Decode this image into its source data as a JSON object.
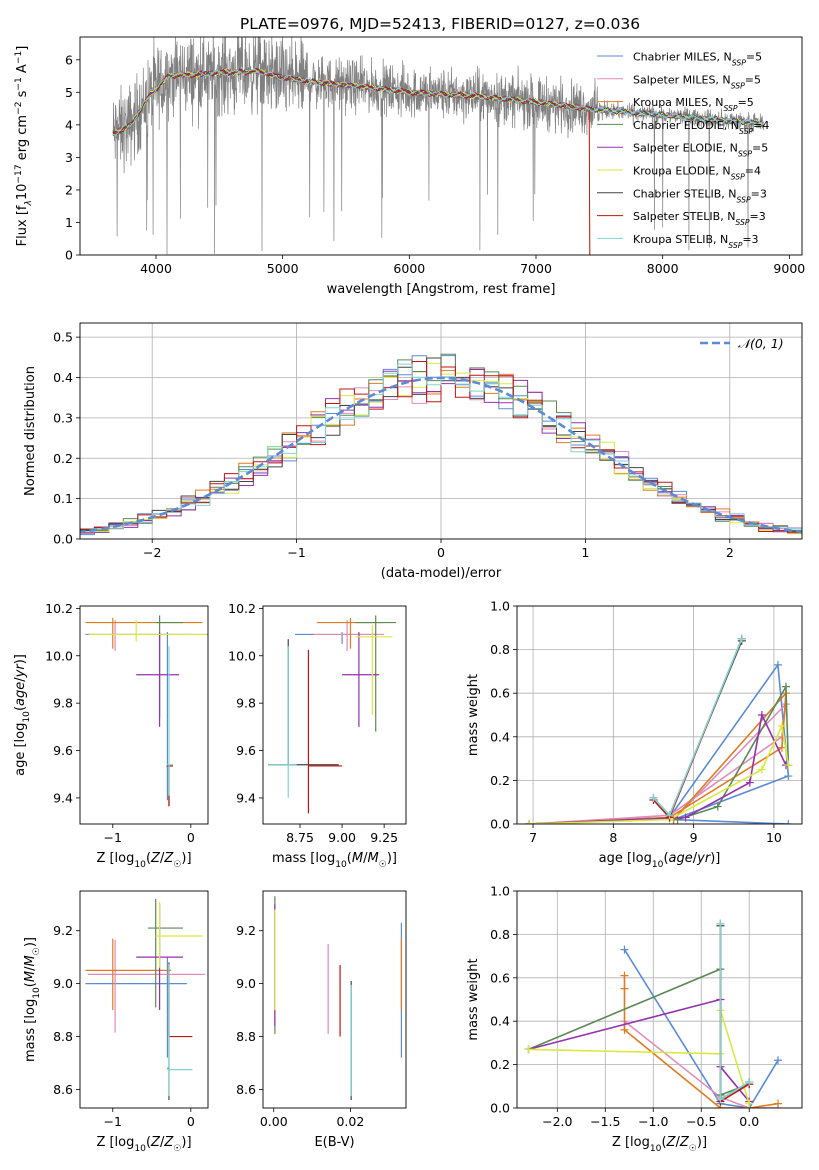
{
  "colors": {
    "chabrier_miles": "#5b8bd6",
    "salpeter_miles": "#e08cba",
    "kroupa_miles": "#e07b20",
    "chabrier_elodie": "#5a8a52",
    "salpeter_elodie": "#9530b0",
    "kroupa_elodie": "#d8ea40",
    "chabrier_stelib": "#444444",
    "salpeter_stelib": "#c01515",
    "kroupa_stelib": "#7fd5d5",
    "data": "#808080",
    "normal": "#5b8bd6",
    "grid": "#b0b0b0"
  },
  "chart_data": [
    {
      "id": "spectrum",
      "type": "line",
      "title": "PLATE=0976, MJD=52413, FIBERID=0127, z=0.036",
      "xlabel": "wavelength [Angstrom, rest frame]",
      "ylabel_parts": [
        "Flux [f",
        "λ",
        "10",
        "−17",
        " erg cm",
        "−2",
        " s",
        "−1",
        " A",
        "−1",
        "]"
      ],
      "xlim": [
        3400,
        9100
      ],
      "ylim": [
        0,
        6.7
      ],
      "xticks": [
        4000,
        5000,
        6000,
        7000,
        8000,
        9000
      ],
      "yticks": [
        0,
        1,
        2,
        3,
        4,
        5,
        6
      ],
      "grid": false,
      "legend_position": "top-right",
      "legend": [
        {
          "label": "Chabrier MILES, N",
          "sub": "SSP",
          "tail": "=5",
          "color": "chabrier_miles"
        },
        {
          "label": "Salpeter MILES, N",
          "sub": "SSP",
          "tail": "=5",
          "color": "salpeter_miles"
        },
        {
          "label": "Kroupa MILES, N",
          "sub": "SSP",
          "tail": "=5",
          "color": "kroupa_miles"
        },
        {
          "label": "Chabrier ELODIE, N",
          "sub": "SSP",
          "tail": "=4",
          "color": "chabrier_elodie"
        },
        {
          "label": "Salpeter ELODIE, N",
          "sub": "SSP",
          "tail": "=5",
          "color": "salpeter_elodie"
        },
        {
          "label": "Kroupa ELODIE, N",
          "sub": "SSP",
          "tail": "=4",
          "color": "kroupa_elodie"
        },
        {
          "label": "Chabrier STELIB, N",
          "sub": "SSP",
          "tail": "=3",
          "color": "chabrier_stelib"
        },
        {
          "label": "Salpeter STELIB, N",
          "sub": "SSP",
          "tail": "=3",
          "color": "salpeter_stelib"
        },
        {
          "label": "Kroupa STELIB, N",
          "sub": "SSP",
          "tail": "=3",
          "color": "kroupa_stelib"
        }
      ],
      "model_continuum": {
        "x": [
          3650,
          3800,
          3950,
          4100,
          4300,
          4500,
          4800,
          5000,
          5300,
          5600,
          6000,
          6500,
          7000,
          7400,
          7700,
          8000,
          8300,
          8600,
          8800
        ],
        "y": [
          3.7,
          4.0,
          4.9,
          5.5,
          5.55,
          5.6,
          5.65,
          5.45,
          5.3,
          5.2,
          5.0,
          4.9,
          4.7,
          4.5,
          4.4,
          4.3,
          4.2,
          4.1,
          4.05
        ]
      }
    },
    {
      "id": "residuals",
      "type": "step",
      "xlabel": "(data-model)/error",
      "ylabel": "Normed distribution",
      "xlim": [
        -2.5,
        2.5
      ],
      "ylim": [
        0,
        0.535
      ],
      "xticks": [
        -2,
        -1,
        0,
        1,
        2
      ],
      "xtick_labels": [
        "−2",
        "−1",
        "0",
        "1",
        "2"
      ],
      "yticks": [
        0,
        0.1,
        0.2,
        0.3,
        0.4,
        0.5
      ],
      "ytick_labels": [
        "0.0",
        "0.1",
        "0.2",
        "0.3",
        "0.4",
        "0.5"
      ],
      "grid": true,
      "legend_position": "top-right",
      "normal_label": "𝒩(0, 1)",
      "bin_width": 0.1
    },
    {
      "id": "age_vs_Z",
      "type": "errorbar",
      "xlabel": "Z [log10(Z/Z☉)]",
      "ylabel": "age  [log10(age/yr)]",
      "xlim": [
        -1.42,
        0.22
      ],
      "ylim": [
        9.29,
        10.21
      ],
      "xticks": [
        -1,
        0
      ],
      "xtick_labels": [
        "−1",
        "0"
      ],
      "yticks": [
        9.4,
        9.6,
        9.8,
        10.0,
        10.2
      ],
      "ytick_labels": [
        "9.4",
        "9.6",
        "9.8",
        "10.0",
        "10.2"
      ],
      "points": [
        {
          "color": "chabrier_miles",
          "x": -0.3,
          "xerr": [
            1.05,
            0.3
          ],
          "y": 10.09,
          "yerr": [
            0.7,
            0.01
          ]
        },
        {
          "color": "salpeter_miles",
          "x": -0.97,
          "xerr": [
            0.35,
            1.25
          ],
          "y": 10.09,
          "yerr": [
            0.07,
            0.06
          ]
        },
        {
          "color": "kroupa_miles",
          "x": -1.0,
          "xerr": [
            0.35,
            1.15
          ],
          "y": 10.14,
          "yerr": [
            0.11,
            0.02
          ]
        },
        {
          "color": "chabrier_elodie",
          "x": -0.4,
          "xerr": [
            0.05,
            0.3
          ],
          "y": 10.14,
          "yerr": [
            0.4,
            0.03
          ]
        },
        {
          "color": "salpeter_elodie",
          "x": -0.4,
          "xerr": [
            0.3,
            0.25
          ],
          "y": 9.92,
          "yerr": [
            0.22,
            0.18
          ]
        },
        {
          "color": "kroupa_elodie",
          "x": -0.7,
          "xerr": [
            0.6,
            0.9
          ],
          "y": 10.09,
          "yerr": [
            0.03,
            0.06
          ]
        },
        {
          "color": "chabrier_stelib",
          "x": -0.28,
          "xerr": [
            0.03,
            0.05
          ],
          "y": 9.535,
          "yerr": [
            0.17,
            0.0
          ]
        },
        {
          "color": "salpeter_stelib",
          "x": -0.28,
          "xerr": [
            0.03,
            0.05
          ],
          "y": 9.535,
          "yerr": [
            0.17,
            0.0
          ]
        },
        {
          "color": "kroupa_stelib",
          "x": -0.28,
          "xerr": [
            0.03,
            0.05
          ],
          "y": 9.54,
          "yerr": [
            0.13,
            0.5
          ]
        }
      ]
    },
    {
      "id": "age_vs_mass",
      "type": "errorbar",
      "xlabel": "mass [log10(M/M☉)]",
      "ylabel": "",
      "xlim": [
        8.53,
        9.38
      ],
      "ylim": [
        9.29,
        10.21
      ],
      "xticks": [
        8.75,
        9.0,
        9.25
      ],
      "xtick_labels": [
        "8.75",
        "9.00",
        "9.25"
      ],
      "yticks": [
        9.4,
        9.6,
        9.8,
        10.0,
        10.2
      ],
      "ytick_labels": [
        "9.4",
        "9.6",
        "9.8",
        "10.0",
        "10.2"
      ],
      "points": [
        {
          "color": "chabrier_miles",
          "x": 9.0,
          "xerr": [
            0.28,
            0.2
          ],
          "y": 10.09,
          "yerr": [
            0.04,
            0.01
          ]
        },
        {
          "color": "salpeter_miles",
          "x": 9.03,
          "xerr": [
            0.2,
            0.22
          ],
          "y": 10.09,
          "yerr": [
            0.07,
            0.06
          ]
        },
        {
          "color": "kroupa_miles",
          "x": 9.05,
          "xerr": [
            0.2,
            0.2
          ],
          "y": 10.14,
          "yerr": [
            0.11,
            0.02
          ]
        },
        {
          "color": "chabrier_elodie",
          "x": 9.2,
          "xerr": [
            0.12,
            0.12
          ],
          "y": 10.14,
          "yerr": [
            0.46,
            0.03
          ]
        },
        {
          "color": "salpeter_elodie",
          "x": 9.1,
          "xerr": [
            0.1,
            0.12
          ],
          "y": 9.92,
          "yerr": [
            0.22,
            0.18
          ]
        },
        {
          "color": "kroupa_elodie",
          "x": 9.18,
          "xerr": [
            0.1,
            0.12
          ],
          "y": 10.08,
          "yerr": [
            0.33,
            0.05
          ]
        },
        {
          "color": "chabrier_stelib",
          "x": 8.68,
          "xerr": [
            0.12,
            0.3
          ],
          "y": 9.54,
          "yerr": [
            0.0,
            0.53
          ]
        },
        {
          "color": "salpeter_stelib",
          "x": 8.8,
          "xerr": [
            0.0,
            0.2
          ],
          "y": 9.535,
          "yerr": [
            0.2,
            0.49
          ]
        },
        {
          "color": "kroupa_stelib",
          "x": 8.68,
          "xerr": [
            0.12,
            0.05
          ],
          "y": 9.54,
          "yerr": [
            0.14,
            0.5
          ]
        }
      ]
    },
    {
      "id": "weight_vs_age",
      "type": "line",
      "xlabel": "age  [log10(age/yr)]",
      "ylabel": "mass weight",
      "xlim": [
        6.8,
        10.35
      ],
      "ylim": [
        0,
        1.0
      ],
      "xticks": [
        7,
        8,
        9,
        10
      ],
      "yticks": [
        0,
        0.2,
        0.4,
        0.6,
        0.8,
        1.0
      ],
      "ytick_labels": [
        "0.0",
        "0.2",
        "0.4",
        "0.6",
        "0.8",
        "1.0"
      ],
      "grid": true,
      "series": [
        {
          "color": "chabrier_miles",
          "x": [
            6.95,
            8.7,
            10.05,
            10.18,
            8.75,
            10.18
          ],
          "y": [
            0.0,
            0.03,
            0.73,
            0.22,
            0.02,
            0.0
          ]
        },
        {
          "color": "salpeter_miles",
          "x": [
            6.95,
            8.7,
            10.1,
            10.15,
            8.75
          ],
          "y": [
            0.0,
            0.04,
            0.4,
            0.55,
            0.02
          ]
        },
        {
          "color": "kroupa_miles",
          "x": [
            6.95,
            8.7,
            10.1,
            10.15,
            8.75
          ],
          "y": [
            0.0,
            0.03,
            0.35,
            0.6,
            0.02
          ]
        },
        {
          "color": "chabrier_elodie",
          "x": [
            8.8,
            9.3,
            10.15,
            10.18
          ],
          "y": [
            0.02,
            0.08,
            0.63,
            0.27
          ]
        },
        {
          "color": "salpeter_elodie",
          "x": [
            6.95,
            8.9,
            9.7,
            9.85,
            10.15
          ],
          "y": [
            0.0,
            0.03,
            0.19,
            0.5,
            0.27
          ]
        },
        {
          "color": "kroupa_elodie",
          "x": [
            6.95,
            8.7,
            9.85,
            10.1,
            10.18
          ],
          "y": [
            0.0,
            0.02,
            0.25,
            0.45,
            0.27
          ]
        },
        {
          "color": "chabrier_stelib",
          "x": [
            8.5,
            8.7,
            9.6
          ],
          "y": [
            0.12,
            0.04,
            0.84
          ]
        },
        {
          "color": "salpeter_stelib",
          "x": [
            8.5,
            8.7,
            9.6
          ],
          "y": [
            0.11,
            0.03,
            0.85
          ]
        },
        {
          "color": "kroupa_stelib",
          "x": [
            8.5,
            8.7,
            9.6
          ],
          "y": [
            0.12,
            0.04,
            0.85
          ]
        }
      ]
    },
    {
      "id": "mass_vs_Z",
      "type": "errorbar",
      "xlabel": "Z [log10(Z/Z☉)]",
      "ylabel": "mass [log10(M/M☉)]",
      "xlim": [
        -1.42,
        0.22
      ],
      "ylim": [
        8.53,
        9.35
      ],
      "xticks": [
        -1,
        0
      ],
      "xtick_labels": [
        "−1",
        "0"
      ],
      "yticks": [
        8.6,
        8.8,
        9.0,
        9.2
      ],
      "ytick_labels": [
        "8.6",
        "8.8",
        "9.0",
        "9.2"
      ],
      "points": [
        {
          "color": "chabrier_miles",
          "x": -0.3,
          "xerr": [
            1.05,
            0.25
          ],
          "y": 9.0,
          "yerr": [
            0.28,
            0.1
          ]
        },
        {
          "color": "salpeter_miles",
          "x": -0.97,
          "xerr": [
            0.35,
            1.15
          ],
          "y": 9.035,
          "yerr": [
            0.22,
            0.13
          ]
        },
        {
          "color": "kroupa_miles",
          "x": -1.0,
          "xerr": [
            0.35,
            0.75
          ],
          "y": 9.05,
          "yerr": [
            0.15,
            0.12
          ]
        },
        {
          "color": "chabrier_elodie",
          "x": -0.45,
          "xerr": [
            0.1,
            0.35
          ],
          "y": 9.21,
          "yerr": [
            0.3,
            0.11
          ]
        },
        {
          "color": "salpeter_elodie",
          "x": -0.4,
          "xerr": [
            0.3,
            0.3
          ],
          "y": 9.1,
          "yerr": [
            0.2,
            0.2
          ]
        },
        {
          "color": "kroupa_elodie",
          "x": -0.4,
          "xerr": [
            0.05,
            0.55
          ],
          "y": 9.18,
          "yerr": [
            0.12,
            0.13
          ]
        },
        {
          "color": "chabrier_stelib",
          "x": -0.28,
          "xerr": [
            0.02,
            0.0
          ],
          "y": 8.68,
          "yerr": [
            0.12,
            0.4
          ]
        },
        {
          "color": "salpeter_stelib",
          "x": -0.28,
          "xerr": [
            0.0,
            0.3
          ],
          "y": 8.8,
          "yerr": [
            0.0,
            0.28
          ]
        },
        {
          "color": "kroupa_stelib",
          "x": -0.28,
          "xerr": [
            0.02,
            0.3
          ],
          "y": 8.675,
          "yerr": [
            0.1,
            0.4
          ]
        }
      ]
    },
    {
      "id": "mass_vs_EBV",
      "type": "errorbar",
      "xlabel": "E(B-V)",
      "ylabel": "",
      "xlim": [
        -0.0028,
        0.0345
      ],
      "ylim": [
        8.53,
        9.35
      ],
      "xticks": [
        0.0,
        0.02
      ],
      "xtick_labels": [
        "0.00",
        "0.02"
      ],
      "yticks": [
        8.6,
        8.8,
        9.0,
        9.2
      ],
      "ytick_labels": [
        "8.6",
        "8.8",
        "9.0",
        "9.2"
      ],
      "points": [
        {
          "color": "chabrier_miles",
          "x": 0.0333,
          "y": 9.0,
          "yerr": [
            0.28,
            0.23
          ]
        },
        {
          "color": "salpeter_miles",
          "x": 0.0142,
          "y": 9.0,
          "yerr": [
            0.19,
            0.15
          ]
        },
        {
          "color": "kroupa_miles",
          "x": 0.0333,
          "y": 9.05,
          "yerr": [
            0.15,
            0.12
          ]
        },
        {
          "color": "chabrier_elodie",
          "x": 0.0003,
          "y": 9.22,
          "yerr": [
            0.41,
            0.11
          ]
        },
        {
          "color": "salpeter_elodie",
          "x": 0.0003,
          "y": 9.1,
          "yerr": [
            0.26,
            0.2
          ]
        },
        {
          "color": "kroupa_elodie",
          "x": 0.0003,
          "y": 9.18,
          "yerr": [
            0.28,
            0.1
          ]
        },
        {
          "color": "chabrier_stelib",
          "x": 0.0202,
          "y": 8.68,
          "yerr": [
            0.12,
            0.33
          ]
        },
        {
          "color": "salpeter_stelib",
          "x": 0.0173,
          "y": 8.8,
          "yerr": [
            0.0,
            0.27
          ]
        },
        {
          "color": "kroupa_stelib",
          "x": 0.0202,
          "y": 8.675,
          "yerr": [
            0.1,
            0.32
          ]
        }
      ]
    },
    {
      "id": "weight_vs_Z",
      "type": "line",
      "xlabel": "Z [log10(Z/Z☉)]",
      "ylabel": "mass weight",
      "xlim": [
        -2.42,
        0.55
      ],
      "ylim": [
        0,
        1.0
      ],
      "xticks": [
        -2.0,
        -1.5,
        -1.0,
        -0.5,
        0.0
      ],
      "xtick_labels": [
        "−2.0",
        "−1.5",
        "−1.0",
        "−0.5",
        "0.0"
      ],
      "yticks": [
        0,
        0.2,
        0.4,
        0.6,
        0.8,
        1.0
      ],
      "ytick_labels": [
        "0.0",
        "0.2",
        "0.4",
        "0.6",
        "0.8",
        "1.0"
      ],
      "grid": true,
      "series": [
        {
          "color": "chabrier_miles",
          "x": [
            -1.3,
            -0.3,
            0.0,
            0.3
          ],
          "y": [
            0.73,
            0.02,
            0.0,
            0.22
          ]
        },
        {
          "color": "salpeter_miles",
          "x": [
            -1.3,
            -0.3,
            0.0,
            0.3
          ],
          "y": [
            0.4,
            0.05,
            0.0,
            0.0
          ]
        },
        {
          "color": "kroupa_miles",
          "x": [
            -1.3,
            -1.3,
            -1.3,
            -0.3,
            0.0,
            0.3
          ],
          "y": [
            0.61,
            0.55,
            0.36,
            0.0,
            0.0,
            0.02
          ]
        },
        {
          "color": "chabrier_elodie",
          "x": [
            -2.3,
            -0.3,
            -0.3,
            0.0
          ],
          "y": [
            0.27,
            0.64,
            0.06,
            0.11
          ]
        },
        {
          "color": "salpeter_elodie",
          "x": [
            -2.3,
            -0.3,
            -0.3,
            0.0
          ],
          "y": [
            0.27,
            0.5,
            0.19,
            0.03
          ]
        },
        {
          "color": "kroupa_elodie",
          "x": [
            -2.3,
            -0.3,
            -0.3,
            0.0
          ],
          "y": [
            0.27,
            0.25,
            0.45,
            0.02
          ]
        },
        {
          "color": "chabrier_stelib",
          "x": [
            -0.3,
            -0.3,
            0.0
          ],
          "y": [
            0.84,
            0.04,
            0.12
          ]
        },
        {
          "color": "salpeter_stelib",
          "x": [
            -0.3,
            -0.3,
            0.0
          ],
          "y": [
            0.85,
            0.03,
            0.11
          ]
        },
        {
          "color": "kroupa_stelib",
          "x": [
            -0.3,
            -0.3,
            0.0
          ],
          "y": [
            0.85,
            0.04,
            0.12
          ]
        }
      ]
    }
  ]
}
